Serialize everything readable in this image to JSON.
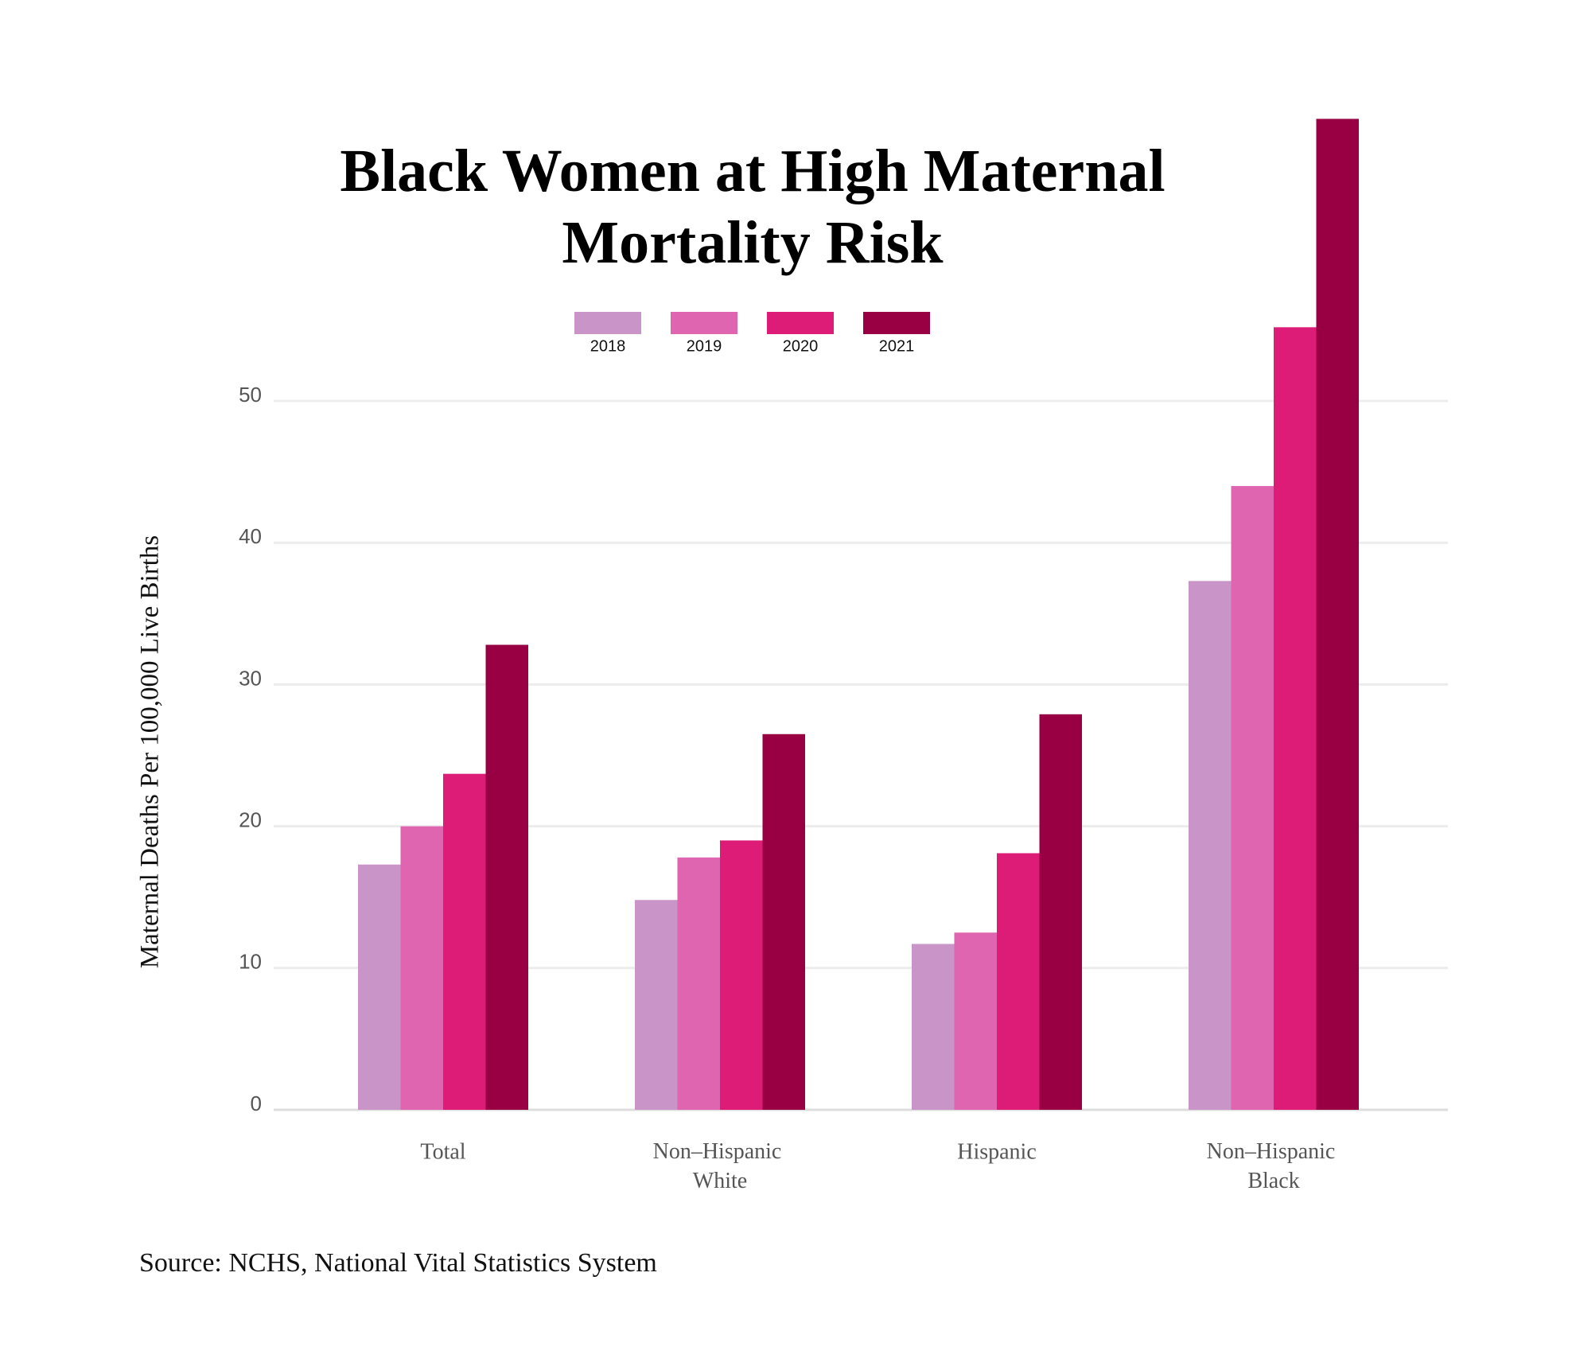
{
  "chart_data": {
    "type": "bar",
    "title": "Black Women at High Maternal Mortality Risk",
    "y_label": "Maternal Deaths Per 100,000 Live Births",
    "source": "Source: NCHS, National Vital Statistics System",
    "categories": [
      "Total",
      "Non–Hispanic White",
      "Hispanic",
      "Non–Hispanic Black"
    ],
    "series": [
      {
        "name": "2018",
        "color": "#c994c7",
        "values": [
          17.3,
          14.8,
          11.7,
          37.3
        ]
      },
      {
        "name": "2019",
        "color": "#df65b0",
        "values": [
          20.0,
          17.8,
          12.5,
          44.0
        ]
      },
      {
        "name": "2020",
        "color": "#dd1c77",
        "values": [
          23.7,
          19.0,
          18.1,
          55.2
        ]
      },
      {
        "name": "2021",
        "color": "#980043",
        "values": [
          32.8,
          26.5,
          27.9,
          69.9
        ]
      }
    ],
    "ylim": [
      0,
      70
    ],
    "yticks": [
      0,
      10,
      20,
      30,
      40,
      50
    ],
    "grid": true
  }
}
